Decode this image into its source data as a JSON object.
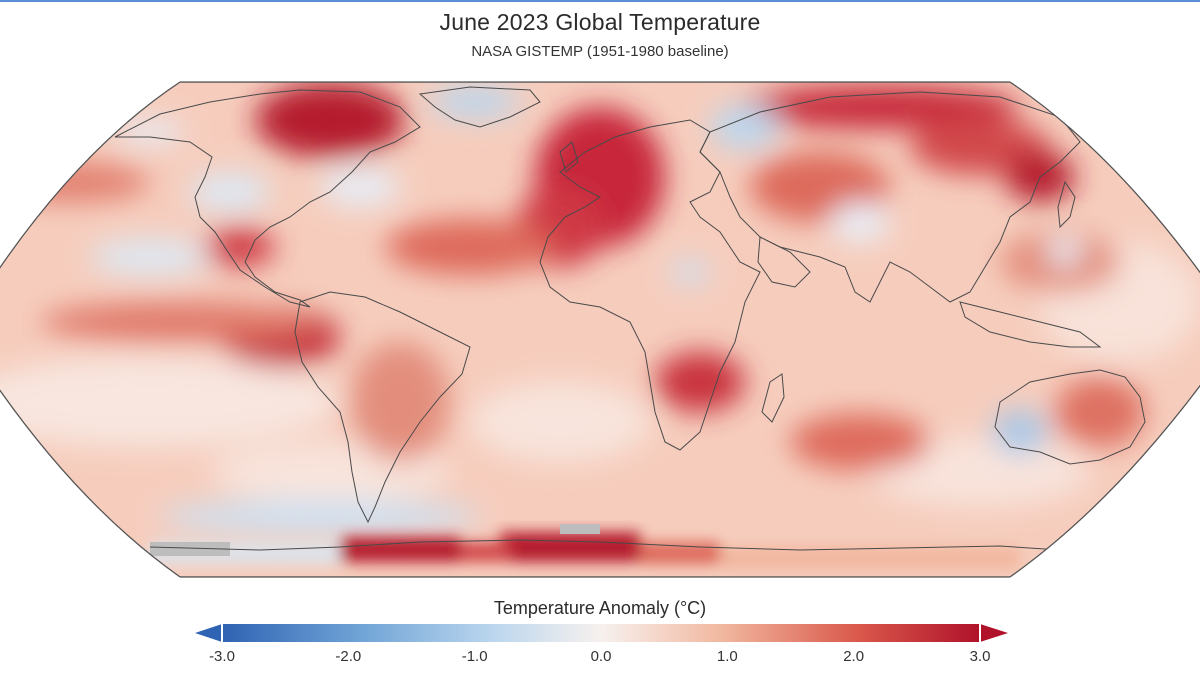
{
  "title": "June 2023 Global Temperature",
  "subtitle": "NASA GISTEMP (1951-1980 baseline)",
  "legend": {
    "title": "Temperature Anomaly (°C)",
    "min": -3.0,
    "max": 3.0,
    "ticks": [
      "-3.0",
      "-2.0",
      "-1.0",
      "0.0",
      "1.0",
      "2.0",
      "3.0"
    ],
    "colors": {
      "cold_extreme": "#2f63b3",
      "cold": "#6fa3d6",
      "cool": "#bcd7ee",
      "neutral": "#f7f1ee",
      "warm": "#f1b79f",
      "hot": "#d9584b",
      "hot_extreme": "#b0122a"
    }
  },
  "map": {
    "projection": "Robinson",
    "background_color": "#f6cdbd",
    "land_outline_color": "#4a4a4a",
    "missing_data_color": "#bdbdbd",
    "hot_regions": [
      "North Atlantic",
      "Hudson Bay",
      "Western Europe",
      "Siberia",
      "Eastern Pacific (Peru)",
      "Southern Africa",
      "Antarctic coast",
      "Mexico",
      "Sea of Okhotsk"
    ],
    "cool_regions": [
      "Greenland",
      "Scandinavia",
      "Tibet",
      "Western Australia",
      "Southern Ocean",
      "Sahara",
      "North Pacific",
      "Eastern US"
    ]
  }
}
